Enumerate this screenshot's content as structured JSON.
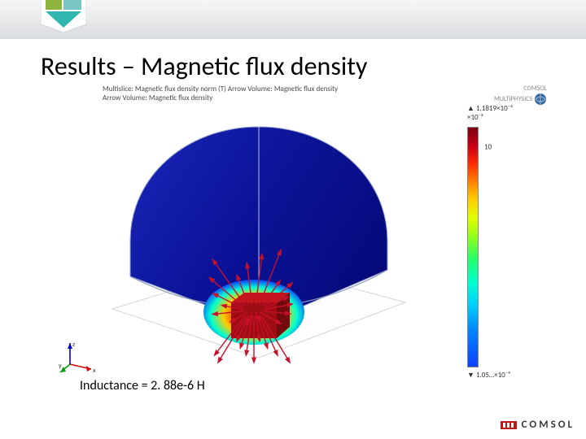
{
  "slide": {
    "title": "Results – Magnetic flux density",
    "inductance_label": "Inductance = 2. 88e-6  H"
  },
  "figure": {
    "caption_line1": "Multislice: Magnetic flux density norm (T)  Arrow Volume: Magnetic flux density",
    "caption_line2": "Arrow Volume: Magnetic flux density",
    "brand": {
      "text": "COMSOL",
      "subtext": "MULTIPHYSICS"
    },
    "axis_triad": {
      "x": "x",
      "y": "y",
      "z": "z",
      "x_color": "#d00000",
      "y_color": "#00a000",
      "z_color": "#0000d0"
    }
  },
  "colorbar": {
    "max_marker": "▲ 1.1819×10⁻⁴",
    "expo_top": "×10⁻⁵",
    "min_marker": "▼ 1.05…×10⁻⁹",
    "ticks": [
      {
        "pos": 0.08,
        "label": "10"
      }
    ],
    "gradient_stops": [
      "#7a0010",
      "#cc0016",
      "#ff2a00",
      "#ff7a00",
      "#ffcc00",
      "#dfff00",
      "#8fff1e",
      "#24ff6a",
      "#00ffd0",
      "#00d0ff",
      "#008aff",
      "#0d3fff"
    ]
  },
  "volume_plot": {
    "type": "3d-field",
    "dome_fill_colors": [
      "#050a8a",
      "#0a1aa8",
      "#1410a0",
      "#050880"
    ],
    "dome_edge_color": "#9aa6c9",
    "hotspot_colors": [
      "#7a0010",
      "#ff2a00",
      "#ffcc00",
      "#0d3fff"
    ],
    "background_color": "#ffffff",
    "arrow_color": "#c9102a",
    "arrow_count_visible": 36
  },
  "footer": {
    "logo_text": "COMSOL"
  },
  "colors": {
    "banner_top": "#f5f6f7",
    "banner_bottom": "#d9dcde",
    "title": "#000000",
    "caption": "#4a4a4a",
    "tick": "#333333"
  },
  "typography": {
    "title_fontsize_pt": 32,
    "caption_fontsize_pt": 9,
    "inductance_fontsize_pt": 16,
    "tick_fontsize_pt": 9,
    "font_family": "Calibri"
  }
}
